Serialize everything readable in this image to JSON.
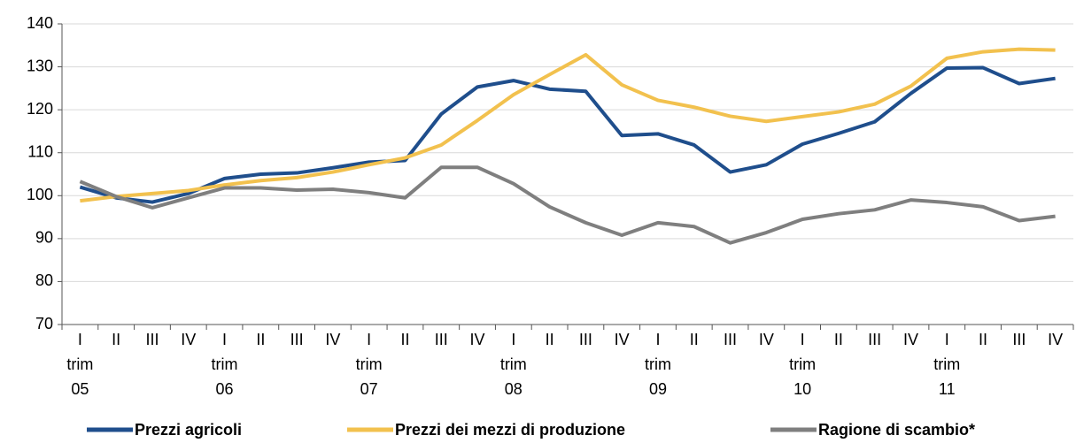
{
  "chart_data": {
    "type": "line",
    "categories": [
      [
        "I",
        "trim",
        "05"
      ],
      [
        "II"
      ],
      [
        "III"
      ],
      [
        "IV"
      ],
      [
        "I",
        "trim",
        "06"
      ],
      [
        "II"
      ],
      [
        "III"
      ],
      [
        "IV"
      ],
      [
        "I",
        "trim",
        "07"
      ],
      [
        "II"
      ],
      [
        "III"
      ],
      [
        "IV"
      ],
      [
        "I",
        "trim",
        "08"
      ],
      [
        "II"
      ],
      [
        "III"
      ],
      [
        "IV"
      ],
      [
        "I",
        "trim",
        "09"
      ],
      [
        "II"
      ],
      [
        "III"
      ],
      [
        "IV"
      ],
      [
        "I",
        "trim",
        "10"
      ],
      [
        "II"
      ],
      [
        "III"
      ],
      [
        "IV"
      ],
      [
        "I",
        "trim",
        "11"
      ],
      [
        "II"
      ],
      [
        "III"
      ],
      [
        "IV"
      ]
    ],
    "series": [
      {
        "name": "Prezzi agricoli",
        "color": "#1f4e8c",
        "values": [
          102,
          99.5,
          98.5,
          100.5,
          104,
          105,
          105.3,
          106.5,
          107.8,
          108.2,
          119,
          125.3,
          126.8,
          124.8,
          124.3,
          114,
          114.4,
          111.8,
          105.5,
          107.2,
          112,
          114.5,
          117.2,
          123.8,
          129.7,
          129.8,
          126.1,
          127.3
        ]
      },
      {
        "name": "Prezzi dei mezzi di produzione",
        "color": "#f2c14e",
        "values": [
          98.8,
          99.8,
          100.5,
          101.2,
          102.5,
          103.5,
          104.2,
          105.5,
          107.2,
          108.8,
          111.8,
          117.5,
          123.5,
          128.2,
          132.8,
          125.8,
          122.2,
          120.6,
          118.5,
          117.3,
          118.4,
          119.5,
          121.3,
          125.5,
          132,
          133.5,
          134.1,
          133.9
        ]
      },
      {
        "name": "Ragione di scambio*",
        "color": "#7f7f7f",
        "values": [
          103.3,
          99.8,
          97.2,
          99.5,
          101.8,
          101.8,
          101.3,
          101.5,
          100.7,
          99.5,
          106.6,
          106.6,
          102.8,
          97.4,
          93.7,
          90.8,
          93.7,
          92.8,
          89,
          91.4,
          94.5,
          95.8,
          96.7,
          99,
          98.4,
          97.4,
          94.2,
          95.2
        ]
      }
    ],
    "ylim": [
      70,
      140
    ],
    "yticks": [
      70,
      80,
      90,
      100,
      110,
      120,
      130,
      140
    ],
    "grid": true,
    "legend": "bottom"
  }
}
